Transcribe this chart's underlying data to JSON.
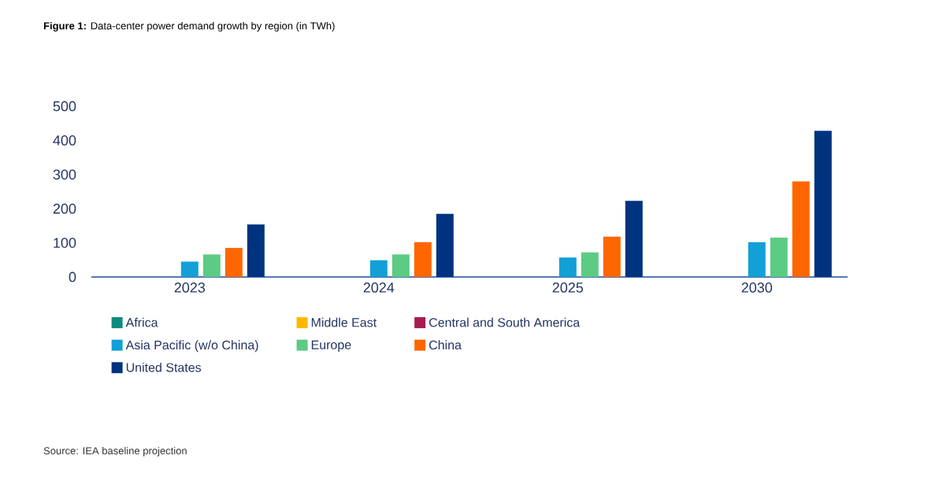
{
  "chart_data": {
    "type": "bar",
    "title": "**Figure 1:** Data-center power demand growth by region (in TWh)",
    "categories": [
      "2023",
      "2024",
      "2025",
      "2030"
    ],
    "series": [
      {
        "name": "Africa",
        "color": "#0f8a7e",
        "values": [
          0,
          0,
          0,
          0
        ]
      },
      {
        "name": "Middle East",
        "color": "#ffb800",
        "values": [
          0,
          0,
          0,
          0
        ]
      },
      {
        "name": "Central and South America",
        "color": "#a51c51",
        "values": [
          0,
          0,
          0,
          0
        ]
      },
      {
        "name": "Asia Pacific (w/o China)",
        "color": "#12a0d7",
        "values": [
          45,
          49,
          57,
          102
        ]
      },
      {
        "name": "Europe",
        "color": "#5ccb84",
        "values": [
          66,
          66,
          72,
          115
        ]
      },
      {
        "name": "China",
        "color": "#ff6600",
        "values": [
          85,
          102,
          118,
          280
        ]
      },
      {
        "name": "United States",
        "color": "#00337f",
        "values": [
          154,
          185,
          223,
          428
        ]
      }
    ],
    "ylim": [
      0,
      500
    ],
    "yticks": [
      0,
      100,
      200,
      300,
      400,
      500
    ],
    "legend": "bottom",
    "annotations": [
      "Source: IEA baseline projection"
    ]
  }
}
